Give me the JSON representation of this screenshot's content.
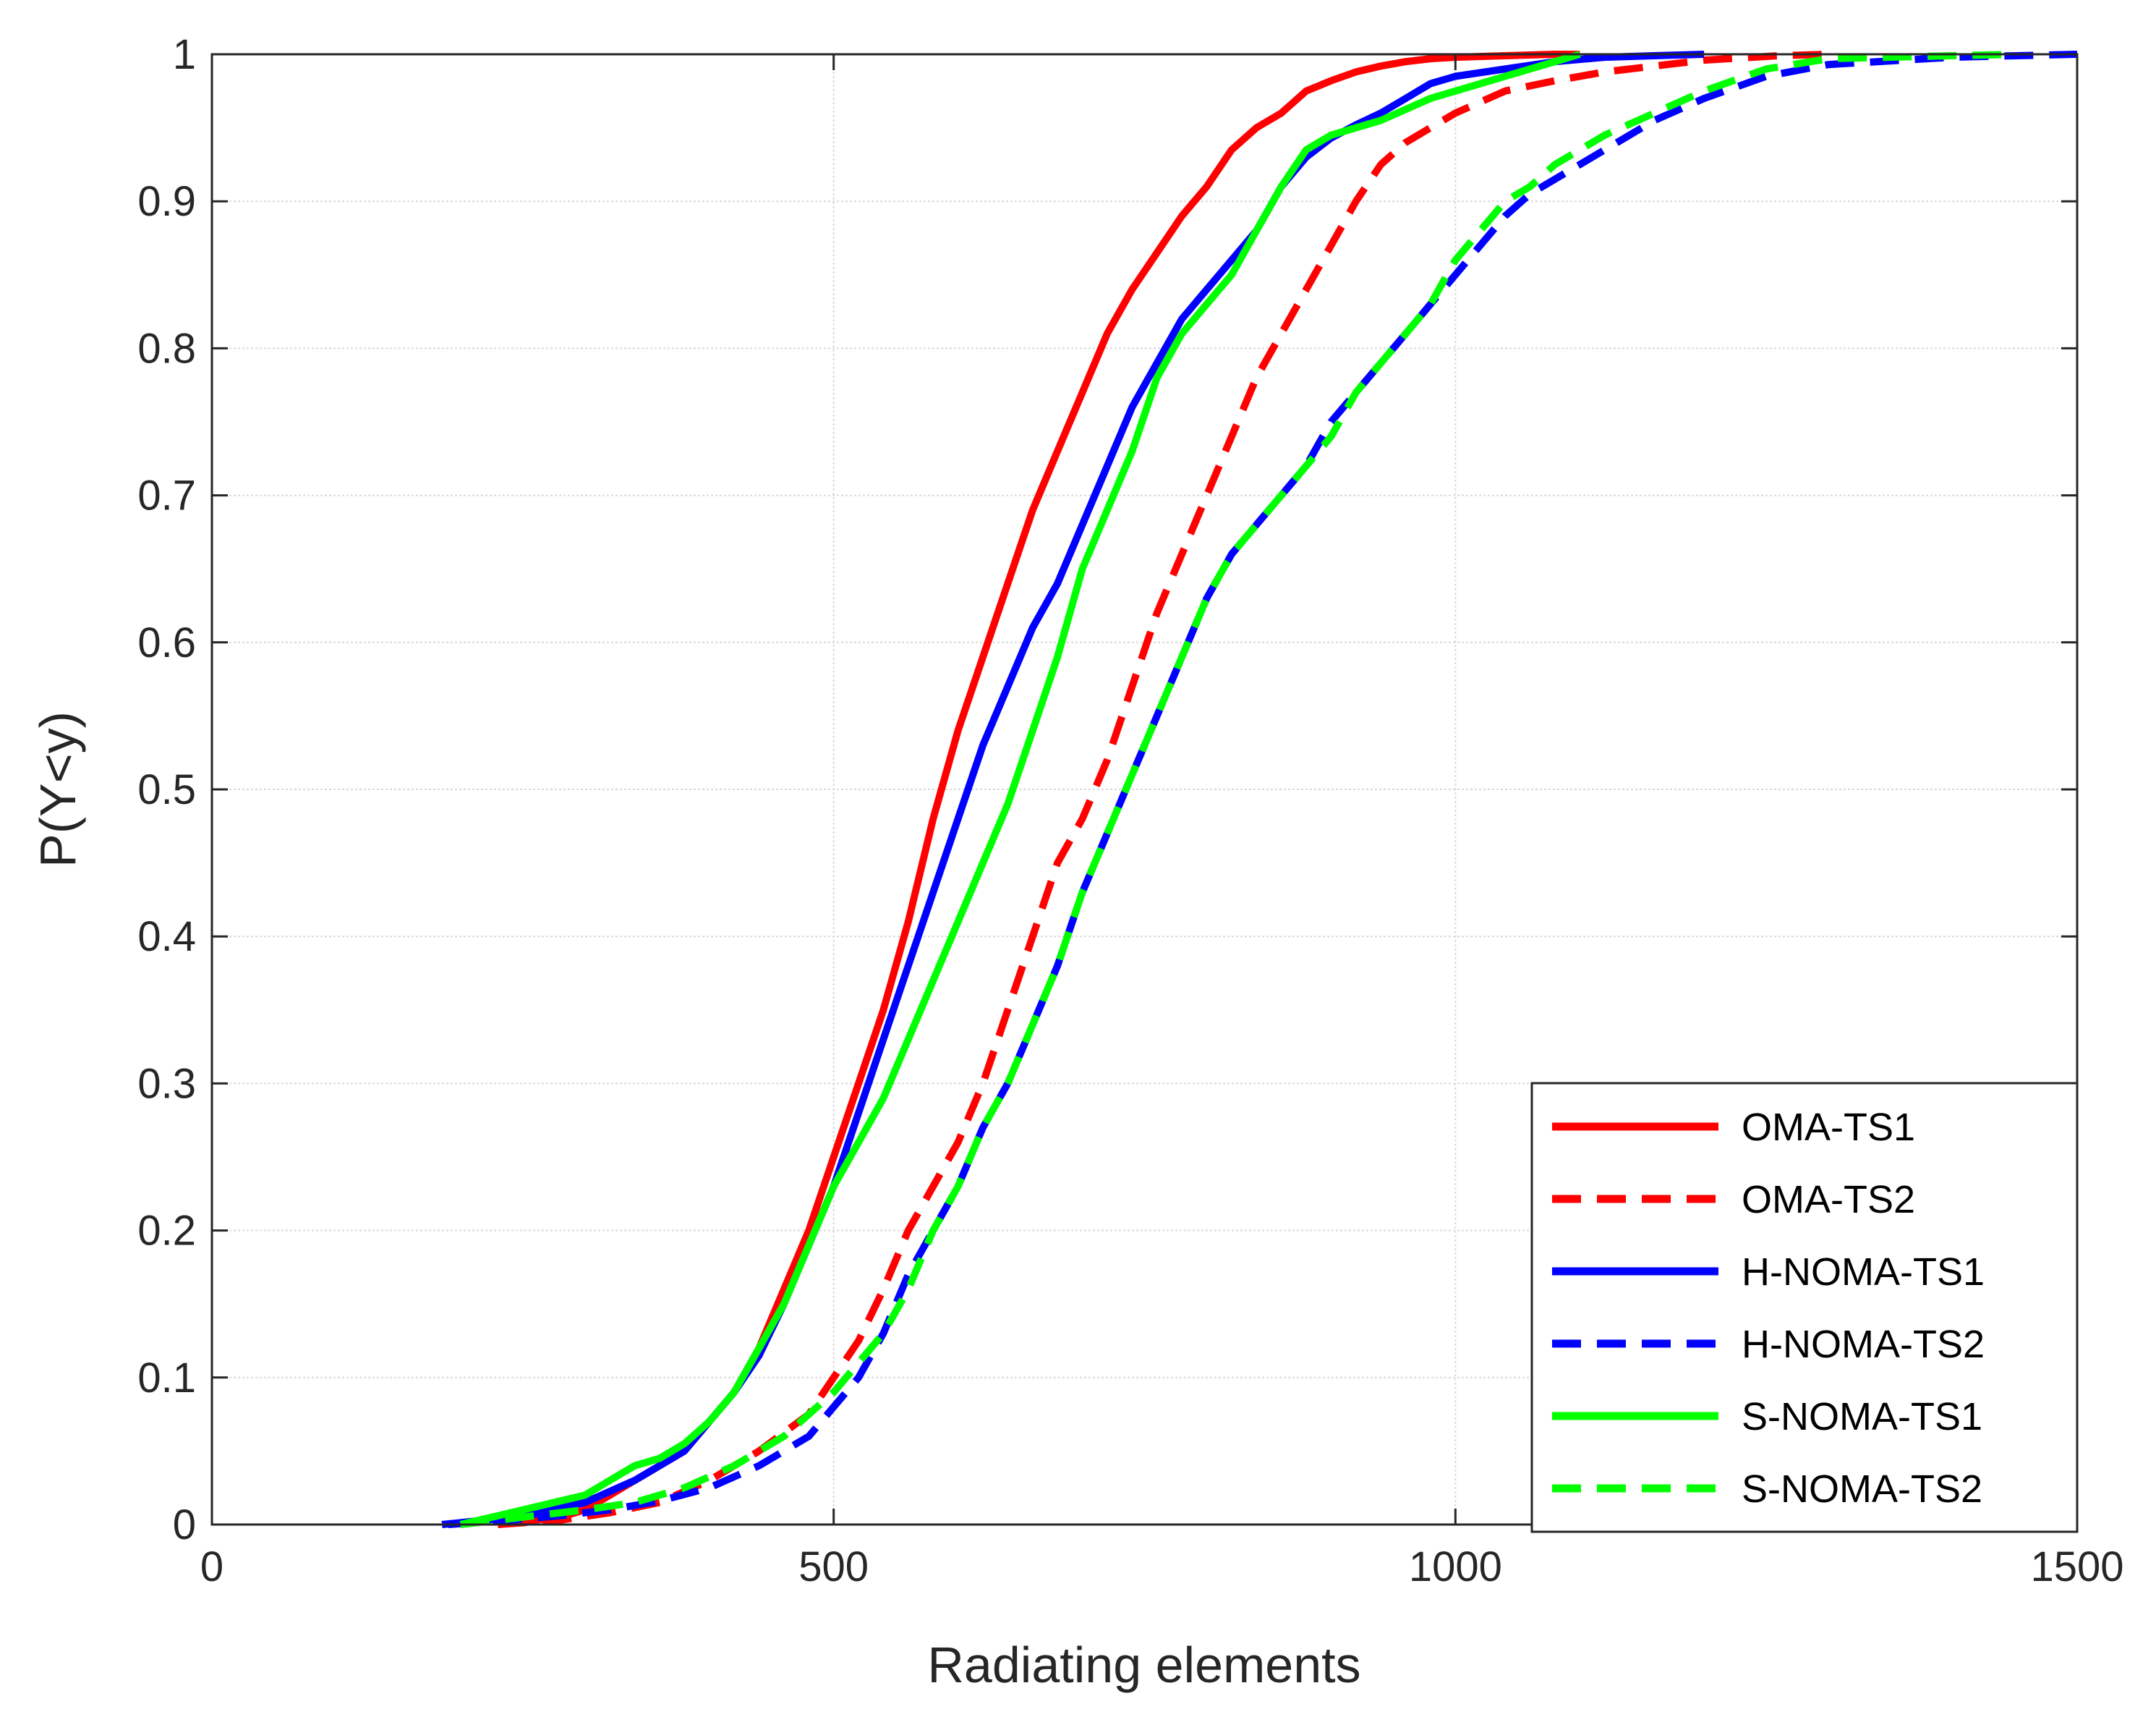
{
  "chart_data": {
    "type": "line",
    "title": "",
    "xlabel": "Radiating elements",
    "ylabel": "P(Y<y)",
    "xlim": [
      0,
      1500
    ],
    "ylim": [
      0,
      1
    ],
    "grid": true,
    "legend_position": "bottom-right",
    "x_ticks": [
      0,
      500,
      1000,
      1500
    ],
    "x_tick_labels": [
      "0",
      "500",
      "1000",
      "1500"
    ],
    "y_ticks": [
      0,
      0.1,
      0.2,
      0.3,
      0.4,
      0.5,
      0.6,
      0.7,
      0.8,
      0.9,
      1
    ],
    "y_tick_labels": [
      "0",
      "0.1",
      "0.2",
      "0.3",
      "0.4",
      "0.5",
      "0.6",
      "0.7",
      "0.8",
      "0.9",
      "1"
    ],
    "series": [
      {
        "name": "OMA-TS1",
        "color": "#ff0000",
        "dash": "solid",
        "x": [
          230,
          280,
          300,
          320,
          340,
          360,
          380,
          400,
          420,
          440,
          460,
          480,
          500,
          520,
          540,
          560,
          580,
          600,
          620,
          640,
          660,
          680,
          700,
          720,
          740,
          760,
          780,
          800,
          820,
          840,
          860,
          880,
          900,
          920,
          940,
          960,
          980,
          1000,
          1040,
          1080,
          1100
        ],
        "y": [
          0,
          0.005,
          0.01,
          0.02,
          0.03,
          0.04,
          0.05,
          0.07,
          0.09,
          0.12,
          0.16,
          0.2,
          0.25,
          0.3,
          0.35,
          0.41,
          0.48,
          0.54,
          0.59,
          0.64,
          0.69,
          0.73,
          0.77,
          0.81,
          0.84,
          0.865,
          0.89,
          0.91,
          0.935,
          0.95,
          0.96,
          0.975,
          0.982,
          0.988,
          0.992,
          0.995,
          0.997,
          0.998,
          0.999,
          1,
          1
        ]
      },
      {
        "name": "OMA-TS2",
        "color": "#ff0000",
        "dash": "dashed",
        "x": [
          230,
          280,
          320,
          360,
          400,
          440,
          480,
          500,
          520,
          540,
          560,
          580,
          600,
          620,
          640,
          660,
          680,
          700,
          720,
          740,
          760,
          780,
          800,
          820,
          840,
          860,
          880,
          900,
          920,
          940,
          960,
          980,
          1000,
          1040,
          1080,
          1120,
          1160,
          1200,
          1260,
          1300
        ],
        "y": [
          0,
          0.003,
          0.008,
          0.015,
          0.03,
          0.05,
          0.075,
          0.1,
          0.125,
          0.16,
          0.2,
          0.23,
          0.26,
          0.3,
          0.35,
          0.4,
          0.45,
          0.48,
          0.52,
          0.57,
          0.62,
          0.66,
          0.7,
          0.74,
          0.78,
          0.81,
          0.84,
          0.87,
          0.9,
          0.925,
          0.94,
          0.95,
          0.96,
          0.975,
          0.982,
          0.988,
          0.992,
          0.996,
          0.999,
          1
        ]
      },
      {
        "name": "H-NOMA-TS1",
        "color": "#0000ff",
        "dash": "solid",
        "x": [
          185,
          220,
          260,
          300,
          340,
          380,
          400,
          420,
          440,
          460,
          480,
          500,
          520,
          540,
          560,
          580,
          600,
          620,
          640,
          660,
          680,
          700,
          720,
          740,
          760,
          780,
          800,
          820,
          840,
          860,
          880,
          900,
          920,
          940,
          960,
          980,
          1000,
          1040,
          1080,
          1120,
          1160,
          1200
        ],
        "y": [
          0,
          0.003,
          0.007,
          0.015,
          0.03,
          0.05,
          0.07,
          0.09,
          0.115,
          0.15,
          0.19,
          0.23,
          0.28,
          0.33,
          0.38,
          0.43,
          0.48,
          0.53,
          0.57,
          0.61,
          0.64,
          0.68,
          0.72,
          0.76,
          0.79,
          0.82,
          0.84,
          0.86,
          0.88,
          0.91,
          0.93,
          0.943,
          0.952,
          0.96,
          0.97,
          0.98,
          0.985,
          0.99,
          0.995,
          0.998,
          0.999,
          1
        ]
      },
      {
        "name": "H-NOMA-TS2",
        "color": "#0000ff",
        "dash": "dashed",
        "x": [
          190,
          240,
          280,
          320,
          360,
          400,
          440,
          480,
          500,
          520,
          540,
          560,
          580,
          600,
          620,
          640,
          660,
          680,
          700,
          720,
          740,
          760,
          780,
          800,
          820,
          840,
          860,
          880,
          900,
          920,
          940,
          960,
          980,
          1000,
          1020,
          1040,
          1060,
          1080,
          1100,
          1120,
          1140,
          1160,
          1200,
          1250,
          1300,
          1400,
          1500
        ],
        "y": [
          0,
          0.003,
          0.006,
          0.01,
          0.016,
          0.025,
          0.04,
          0.06,
          0.08,
          0.1,
          0.13,
          0.17,
          0.2,
          0.23,
          0.27,
          0.3,
          0.34,
          0.38,
          0.43,
          0.47,
          0.51,
          0.55,
          0.59,
          0.63,
          0.66,
          0.68,
          0.7,
          0.72,
          0.75,
          0.77,
          0.79,
          0.81,
          0.83,
          0.85,
          0.87,
          0.89,
          0.905,
          0.915,
          0.925,
          0.935,
          0.945,
          0.955,
          0.97,
          0.985,
          0.993,
          0.998,
          1
        ]
      },
      {
        "name": "S-NOMA-TS1",
        "color": "#00ff00",
        "dash": "solid",
        "x": [
          200,
          250,
          300,
          320,
          340,
          360,
          380,
          400,
          420,
          440,
          460,
          480,
          500,
          520,
          540,
          560,
          580,
          600,
          620,
          640,
          660,
          680,
          700,
          720,
          740,
          760,
          780,
          800,
          820,
          840,
          860,
          880,
          900,
          940,
          980,
          1000,
          1040,
          1080,
          1100
        ],
        "y": [
          0,
          0.01,
          0.02,
          0.03,
          0.04,
          0.045,
          0.055,
          0.07,
          0.09,
          0.12,
          0.15,
          0.19,
          0.23,
          0.26,
          0.29,
          0.33,
          0.37,
          0.41,
          0.45,
          0.49,
          0.54,
          0.59,
          0.65,
          0.69,
          0.73,
          0.78,
          0.81,
          0.83,
          0.85,
          0.88,
          0.91,
          0.935,
          0.945,
          0.955,
          0.97,
          0.975,
          0.985,
          0.995,
          1
        ]
      },
      {
        "name": "S-NOMA-TS2",
        "color": "#00ff00",
        "dash": "dashed",
        "x": [
          200,
          250,
          300,
          340,
          380,
          420,
          460,
          500,
          520,
          540,
          560,
          580,
          600,
          620,
          640,
          660,
          680,
          700,
          720,
          740,
          760,
          780,
          800,
          820,
          840,
          860,
          880,
          900,
          920,
          940,
          960,
          980,
          1000,
          1020,
          1040,
          1060,
          1080,
          1100,
          1120,
          1160,
          1200,
          1250,
          1300,
          1400,
          1450
        ],
        "y": [
          0,
          0.005,
          0.01,
          0.015,
          0.025,
          0.04,
          0.06,
          0.09,
          0.11,
          0.13,
          0.16,
          0.2,
          0.23,
          0.27,
          0.3,
          0.34,
          0.38,
          0.43,
          0.47,
          0.51,
          0.55,
          0.59,
          0.63,
          0.66,
          0.68,
          0.7,
          0.72,
          0.74,
          0.77,
          0.79,
          0.81,
          0.83,
          0.86,
          0.88,
          0.9,
          0.91,
          0.925,
          0.935,
          0.945,
          0.96,
          0.975,
          0.99,
          0.997,
          0.999,
          1
        ]
      }
    ]
  }
}
